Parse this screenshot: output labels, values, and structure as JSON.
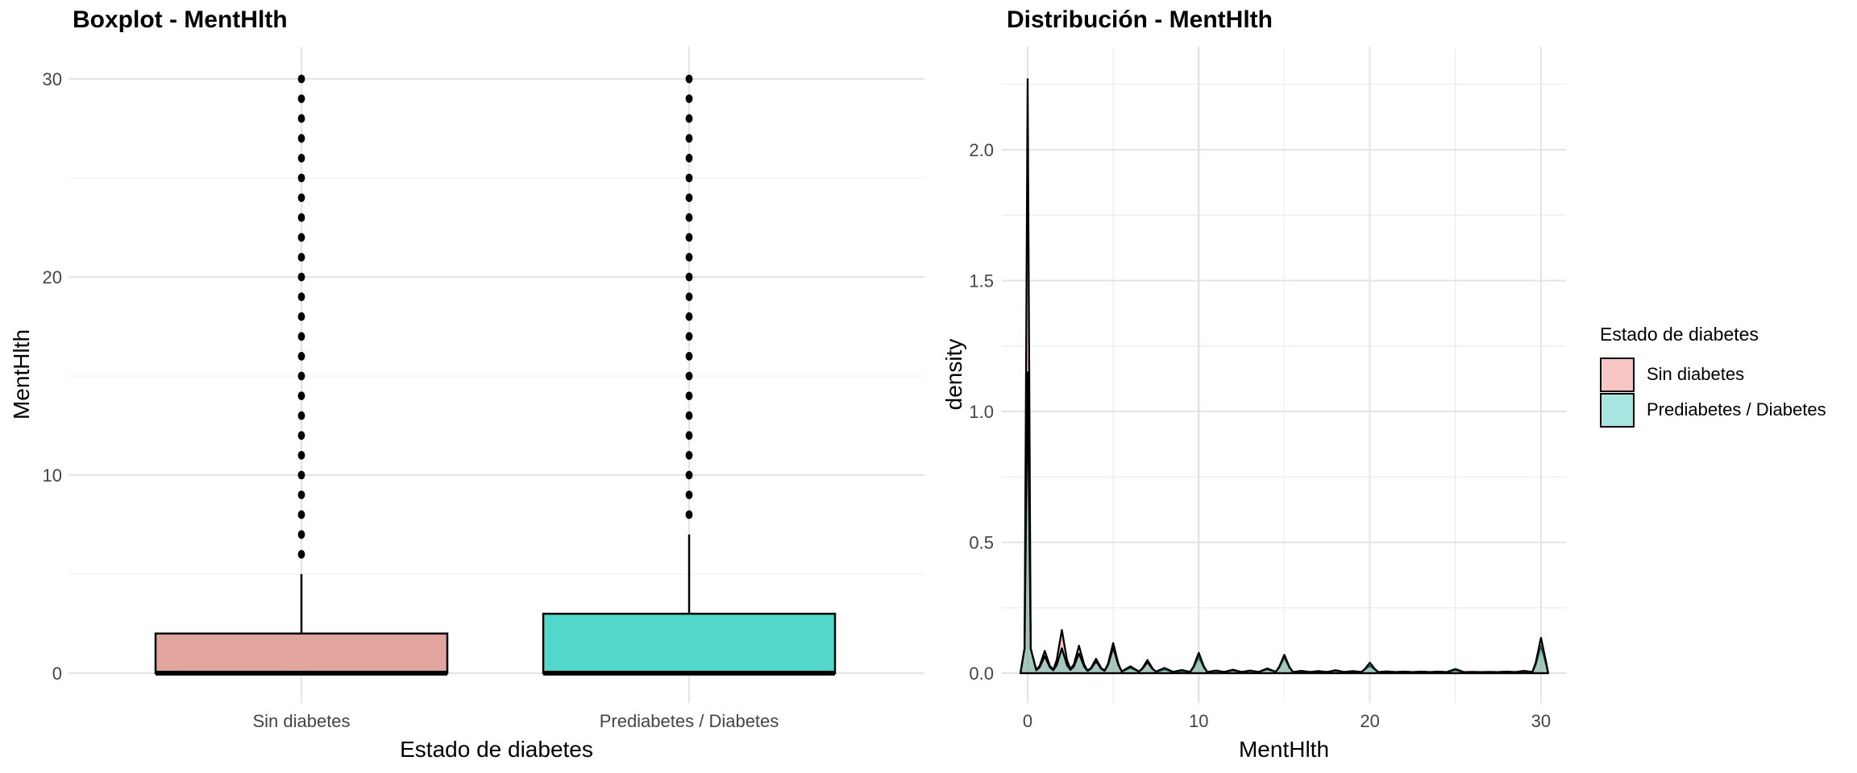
{
  "chart_data": [
    {
      "id": "boxplot",
      "type": "boxplot",
      "title": "Boxplot - MentHlth",
      "xlabel": "Estado de diabetes",
      "ylabel": "MentHlth",
      "ylim": [
        0,
        30
      ],
      "yticks_major": [
        0,
        10,
        20,
        30
      ],
      "yticks_minor": [
        5,
        15,
        25
      ],
      "grid": "on",
      "groups": [
        {
          "label": "Sin diabetes",
          "fill": "#E2A59F",
          "q1": 0,
          "median": 0,
          "q3": 2,
          "whisker_low": 0,
          "whisker_high": 5,
          "outliers": [
            6,
            7,
            8,
            9,
            10,
            11,
            12,
            13,
            14,
            15,
            16,
            17,
            18,
            19,
            20,
            21,
            22,
            23,
            24,
            25,
            26,
            27,
            28,
            29,
            30
          ]
        },
        {
          "label": "Prediabetes / Diabetes",
          "fill": "#52D7CB",
          "q1": 0,
          "median": 0,
          "q3": 3,
          "whisker_low": 0,
          "whisker_high": 7,
          "outliers": [
            8,
            9,
            10,
            11,
            12,
            13,
            14,
            15,
            16,
            17,
            18,
            19,
            20,
            21,
            22,
            23,
            24,
            25,
            26,
            27,
            28,
            29,
            30
          ]
        }
      ]
    },
    {
      "id": "density",
      "type": "density",
      "title": "Distribución - MentHlth",
      "xlabel": "MentHlth",
      "ylabel": "density",
      "xlim": [
        0,
        30
      ],
      "ylim": [
        0,
        2.27
      ],
      "xticks_major": [
        0,
        10,
        20,
        30
      ],
      "xticks_minor": [
        5,
        15,
        25
      ],
      "ytick_labels": [
        "0.0",
        "0.5",
        "1.0",
        "1.5",
        "2.0"
      ],
      "yticks_major": [
        0,
        0.5,
        1.0,
        1.5,
        2.0
      ],
      "yticks_minor": [
        0.25,
        0.75,
        1.25,
        1.75,
        2.25
      ],
      "grid": "on",
      "legend_position": "right",
      "series": [
        {
          "name": "Sin diabetes",
          "fill": "#F2837A",
          "fill_opacity": 0.45,
          "stroke": "#000000",
          "peaks": {
            "0": 2.27,
            "1": 0.085,
            "2": 0.165,
            "3": 0.105,
            "4": 0.055,
            "5": 0.115,
            "6": 0.02,
            "7": 0.05,
            "8": 0.014,
            "9": 0.008,
            "10": 0.062,
            "11": 0.008,
            "12": 0.01,
            "13": 0.008,
            "14": 0.014,
            "15": 0.06,
            "16": 0.007,
            "17": 0.006,
            "18": 0.009,
            "19": 0.006,
            "20": 0.028,
            "21": 0.005,
            "22": 0.005,
            "23": 0.005,
            "24": 0.005,
            "25": 0.012,
            "26": 0.004,
            "27": 0.004,
            "28": 0.005,
            "29": 0.007,
            "30": 0.105
          }
        },
        {
          "name": "Prediabetes / Diabetes",
          "fill": "#3EC7BC",
          "fill_opacity": 0.45,
          "stroke": "#000000",
          "peaks": {
            "0": 1.15,
            "1": 0.065,
            "2": 0.095,
            "3": 0.075,
            "4": 0.045,
            "5": 0.098,
            "6": 0.026,
            "7": 0.042,
            "8": 0.02,
            "9": 0.012,
            "10": 0.078,
            "11": 0.01,
            "12": 0.013,
            "13": 0.01,
            "14": 0.018,
            "15": 0.07,
            "16": 0.009,
            "17": 0.008,
            "18": 0.011,
            "19": 0.008,
            "20": 0.04,
            "21": 0.007,
            "22": 0.006,
            "23": 0.006,
            "24": 0.006,
            "25": 0.016,
            "26": 0.005,
            "27": 0.005,
            "28": 0.006,
            "29": 0.009,
            "30": 0.135
          }
        }
      ]
    }
  ],
  "legend": {
    "title": "Estado de diabetes",
    "items": [
      {
        "label": "Sin diabetes",
        "fill": "#F9C7C3"
      },
      {
        "label": "Prediabetes / Diabetes",
        "fill": "#A8E6E1"
      }
    ]
  },
  "style": {
    "grid_major": "#E4E4E4",
    "grid_minor": "#EFEFEF",
    "tick_color": "#444444",
    "outline": "#000000",
    "background": "#FFFFFF"
  }
}
